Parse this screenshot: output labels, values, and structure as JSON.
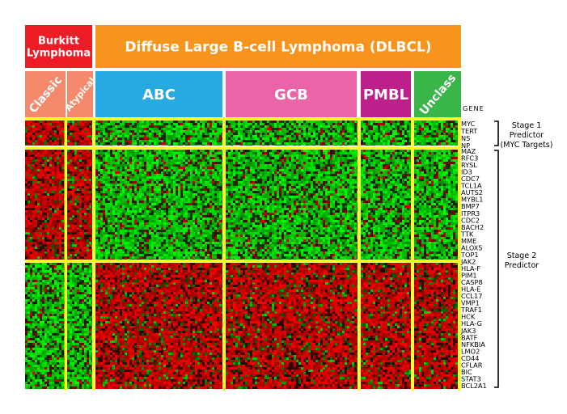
{
  "chart_data": {
    "type": "heatmap",
    "title": "",
    "headers": {
      "top": [
        {
          "id": "burkitt",
          "label_lines": [
            "Burkitt",
            "Lymphoma"
          ],
          "color": "#ee1c25"
        },
        {
          "id": "dlbcl",
          "label_lines": [
            "Diffuse Large B-cell Lymphoma (DLBCL)"
          ],
          "color": "#f7941d"
        }
      ],
      "groups": [
        {
          "id": "classic",
          "label": "Classic",
          "color": "#f4896b",
          "rotated": true
        },
        {
          "id": "atypical",
          "label": "Atypical",
          "color": "#f4896b",
          "rotated": true
        },
        {
          "id": "abc",
          "label": "ABC",
          "color": "#27aae1",
          "rotated": false
        },
        {
          "id": "gcb",
          "label": "GCB",
          "color": "#ec64a8",
          "rotated": false
        },
        {
          "id": "pmbl",
          "label": "PMBL",
          "color": "#bd1f8b",
          "rotated": false
        },
        {
          "id": "unclass",
          "label": "Unclass",
          "color": "#39b54a",
          "rotated": true
        }
      ]
    },
    "gene_header": "GENE",
    "stages": [
      {
        "id": "stage1",
        "label_lines": [
          "Stage 1",
          "Predictor",
          "(MYC Targets)"
        ],
        "genes": [
          "MYC",
          "TERT",
          "NS",
          "NP"
        ]
      },
      {
        "id": "stage2",
        "label_lines": [
          "Stage 2",
          "Predictor"
        ],
        "genes": [
          "MAZ",
          "RFC3",
          "RYSL",
          "ID3",
          "CDC7",
          "TCL1A",
          "AUTS2",
          "MYBL1",
          "BMP7",
          "ITPR3",
          "CDC2",
          "BACH2",
          "TTK",
          "MME",
          "ALOX5",
          "TOP1",
          "JAK2",
          "HLA-F",
          "PIM1",
          "CASP8",
          "HLA-E",
          "CCL17",
          "VMP1",
          "TRAF1",
          "HCK",
          "HLA-G",
          "JAK3",
          "BATF",
          "NFKBIA",
          "LMO2",
          "CD44",
          "CFLAR",
          "BIC",
          "STAT3",
          "BCL2A1"
        ]
      }
    ],
    "expression_pattern": [
      {
        "block": "stage1",
        "classic": "red",
        "atypical": "red",
        "abc": "green",
        "gcb": "green",
        "pmbl": "green",
        "unclass": "green"
      },
      {
        "block": "stage2-upper",
        "classic": "red",
        "atypical": "red",
        "abc": "green",
        "gcb": "green",
        "pmbl": "green",
        "unclass": "green"
      },
      {
        "block": "stage2-lower",
        "classic": "green",
        "atypical": "green",
        "abc": "red",
        "gcb": "red",
        "pmbl": "red",
        "unclass": "red"
      }
    ],
    "colors": {
      "high": "#ff0000",
      "low": "#00ff00",
      "neutral": "#000000",
      "divider": "#ffff00"
    },
    "grid": false,
    "legend": "none"
  }
}
